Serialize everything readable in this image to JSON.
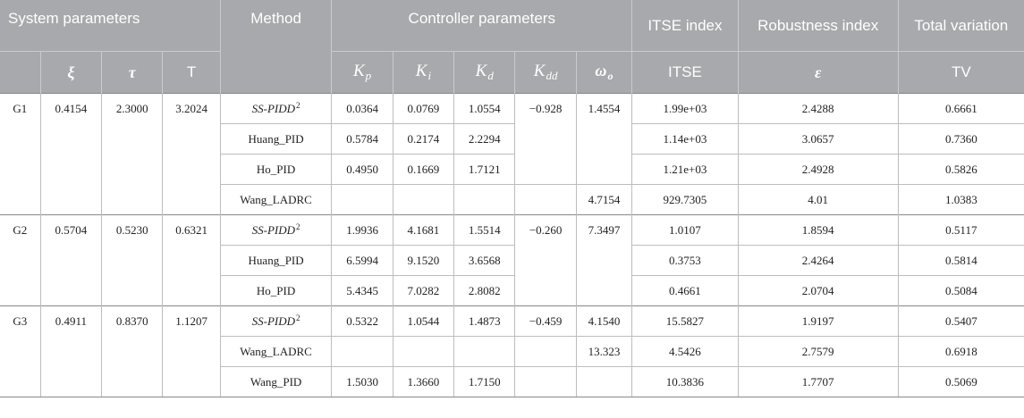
{
  "header": {
    "system_parameters": "System parameters",
    "method": "Method",
    "controller_parameters": "Controller parameters",
    "itse_index": "ITSE index",
    "robustness_index": "Robustness index",
    "total_variation": "Total variation",
    "xi": "ξ",
    "tau": "τ",
    "T": "T",
    "kp_base": "K",
    "kp_sub": "p",
    "ki_base": "K",
    "ki_sub": "i",
    "kd_base": "K",
    "kd_sub": "d",
    "kdd_base": "K",
    "kdd_sub": "dd",
    "wo_base": "ω",
    "wo_sub": "o",
    "itse": "ITSE",
    "epsilon": "ε",
    "tv": "TV"
  },
  "groups": [
    {
      "name": "G1",
      "xi": "0.4154",
      "tau": "2.3000",
      "T": "3.2024",
      "rows": [
        {
          "method": "SS-PIDD",
          "method_sup": "2",
          "kp": "0.0364",
          "ki": "0.0769",
          "kd": "1.0554",
          "kdd": "−0.928",
          "wo": "1.4554",
          "itse": "1.99e+03",
          "eps": "2.4288",
          "tv": "0.6661"
        },
        {
          "method": "Huang_PID",
          "kp": "0.5784",
          "ki": "0.2174",
          "kd": "2.2294",
          "itse": "1.14e+03",
          "eps": "3.0657",
          "tv": "0.7360"
        },
        {
          "method": "Ho_PID",
          "kp": "0.4950",
          "ki": "0.1669",
          "kd": "1.7121",
          "itse": "1.21e+03",
          "eps": "2.4928",
          "tv": "0.5826"
        },
        {
          "method": "Wang_LADRC",
          "kp": "",
          "ki": "",
          "kd": "",
          "kdd": "",
          "wo": "4.7154",
          "itse": "929.7305",
          "eps": "4.01",
          "tv": "1.0383"
        }
      ]
    },
    {
      "name": "G2",
      "xi": "0.5704",
      "tau": "0.5230",
      "T": "0.6321",
      "rows": [
        {
          "method": "SS-PIDD",
          "method_sup": "2",
          "kp": "1.9936",
          "ki": "4.1681",
          "kd": "1.5514",
          "kdd": "−0.260",
          "wo": "7.3497",
          "itse": "1.0107",
          "eps": "1.8594",
          "tv": "0.5117"
        },
        {
          "method": "Huang_PID",
          "kp": "6.5994",
          "ki": "9.1520",
          "kd": "3.6568",
          "itse": "0.3753",
          "eps": "2.4264",
          "tv": "0.5814"
        },
        {
          "method": "Ho_PID",
          "kp": "5.4345",
          "ki": "7.0282",
          "kd": "2.8082",
          "itse": "0.4661",
          "eps": "2.0704",
          "tv": "0.5084"
        }
      ]
    },
    {
      "name": "G3",
      "xi": "0.4911",
      "tau": "0.8370",
      "T": "1.1207",
      "rows": [
        {
          "method": "SS-PIDD",
          "method_sup": "2",
          "kp": "0.5322",
          "ki": "1.0544",
          "kd": "1.4873",
          "kdd": "−0.459",
          "wo": "4.1540",
          "itse": "15.5827",
          "eps": "1.9197",
          "tv": "0.5407"
        },
        {
          "method": "Wang_LADRC",
          "kp": "",
          "ki": "",
          "kd": "",
          "kdd": "",
          "wo": "13.323",
          "itse": "4.5426",
          "eps": "2.7579",
          "tv": "0.6918"
        },
        {
          "method": "Wang_PID",
          "kp": "1.5030",
          "ki": "1.3660",
          "kd": "1.7150",
          "kdd": "",
          "wo": "",
          "itse": "10.3836",
          "eps": "1.7707",
          "tv": "0.5069"
        }
      ]
    }
  ]
}
